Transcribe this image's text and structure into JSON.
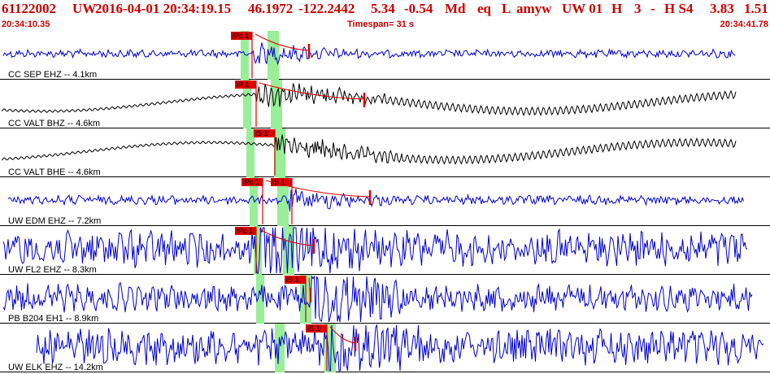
{
  "header": {
    "event_id": "61122002",
    "network": "UW",
    "datetime": "2016-04-01 20:34:19.15",
    "lat": "46.1972",
    "lon": "-122.2442",
    "depth": "5.34",
    "magnitude": "-0.54",
    "mag_type": "Md",
    "event_type": "eq",
    "locator": "L",
    "analyst": "amyw",
    "agency": "UW 01",
    "h": "H",
    "h_num": "3",
    "dash": "-",
    "quality": "H S4",
    "val1": "3.83",
    "val2": "1.51"
  },
  "subheader": {
    "start_time": "20:34:10.35",
    "timespan": "Timespan=  31 s",
    "end_time": "20:34:41.78"
  },
  "colors": {
    "text_red": "#cc0000",
    "trace_blue": "#0000cc",
    "trace_black": "#000000",
    "pick_red": "#dd0000",
    "window_green": "#99ee99"
  },
  "traces": [
    {
      "label": "CC SEP EHZ -- 4.1km",
      "color": "blue",
      "amp": 0.18,
      "picks": [
        {
          "text": "iPc 1"
        }
      ]
    },
    {
      "label": "CC VALT BHZ -- 4.6km",
      "color": "black",
      "amp": 0.5,
      "picks": [
        {
          "text": "iP 1"
        }
      ]
    },
    {
      "label": "CC VALT BHE -- 4.6km",
      "color": "black",
      "amp": 0.5,
      "picks": [
        {
          "text": "iS 1"
        }
      ]
    },
    {
      "label": "UW EDM EHZ -- 7.2km",
      "color": "blue",
      "amp": 0.2,
      "picks": [
        {
          "text": "iPc 1"
        },
        {
          "text": "iS 1"
        }
      ]
    },
    {
      "label": "UW FL2 EHZ -- 8.3km",
      "color": "blue",
      "amp": 0.8,
      "picks": [
        {
          "text": "iPc 1"
        }
      ]
    },
    {
      "label": "PB B204 EH1 -- 8.9km",
      "color": "blue",
      "amp": 0.6,
      "picks": [
        {
          "text": "iS 1"
        }
      ]
    },
    {
      "label": "UW ELK EHZ -- 14.2km",
      "color": "blue",
      "amp": 0.8,
      "picks": [
        {
          "text": "iS 1"
        }
      ]
    }
  ]
}
